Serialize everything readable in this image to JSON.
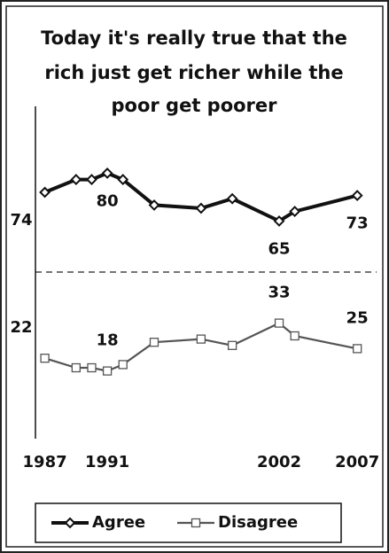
{
  "chart_data": {
    "type": "line",
    "title": [
      "Today it's really true that the",
      "rich just get richer while the",
      "poor get poorer"
    ],
    "x": [
      1987,
      1989,
      1990,
      1991,
      1992,
      1994,
      1997,
      1999,
      2002,
      2003,
      2007
    ],
    "series": [
      {
        "name": "Agree",
        "color": "#111111",
        "values": [
          74,
          78,
          78,
          80,
          78,
          70,
          69,
          72,
          65,
          68,
          73
        ]
      },
      {
        "name": "Disagree",
        "color": "#555555",
        "values": [
          22,
          19,
          19,
          18,
          20,
          27,
          28,
          26,
          33,
          29,
          25
        ]
      }
    ],
    "xlim": [
      1986.4,
      2007.5
    ],
    "xticks": [
      1987,
      1991,
      2002,
      2007
    ],
    "ylim": [
      0,
      100
    ],
    "legend": "bottom"
  }
}
